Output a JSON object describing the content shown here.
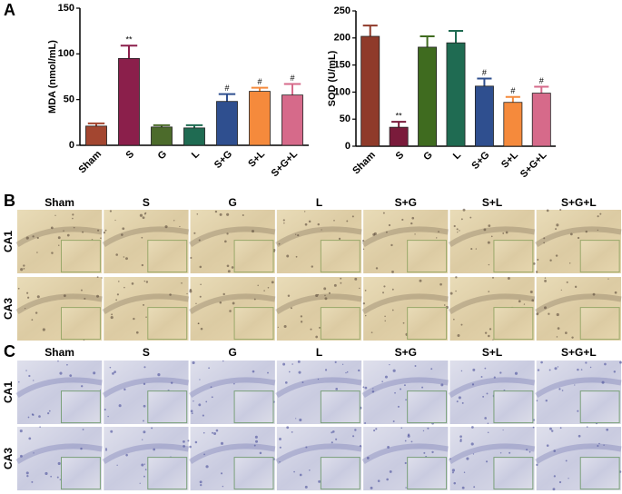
{
  "chart_data": [
    {
      "type": "bar",
      "y_label": "MDA (nmol/mL)",
      "categories": [
        "Sham",
        "S",
        "G",
        "L",
        "S+G",
        "S+L",
        "S+G+L"
      ],
      "values": [
        21,
        95,
        20,
        19,
        48,
        59,
        55
      ],
      "errors": [
        3,
        14,
        2,
        3,
        8,
        4,
        12
      ],
      "significance": [
        null,
        "**",
        null,
        null,
        "#",
        "#",
        "#"
      ],
      "colors": [
        "#a34630",
        "#8b1f4b",
        "#4c6b2b",
        "#1f6b52",
        "#2f4f8f",
        "#f58a3c",
        "#d66a8a"
      ],
      "ylim": [
        0,
        150
      ],
      "yticks": [
        0,
        50,
        100,
        150
      ]
    },
    {
      "type": "bar",
      "y_label": "SOD (U/mL)",
      "categories": [
        "Sham",
        "S",
        "G",
        "L",
        "S+G",
        "S+L",
        "S+G+L"
      ],
      "values": [
        203,
        35,
        183,
        191,
        111,
        81,
        98
      ],
      "errors": [
        20,
        10,
        20,
        22,
        14,
        10,
        12
      ],
      "significance": [
        null,
        "**",
        null,
        null,
        "#",
        "#",
        "#"
      ],
      "colors": [
        "#8f3a2a",
        "#7a1b3b",
        "#3f6b1f",
        "#1f6b52",
        "#2f4f8f",
        "#f58a3c",
        "#d66a8a"
      ],
      "ylim": [
        0,
        250
      ],
      "yticks": [
        0,
        50,
        100,
        150,
        200,
        250
      ]
    }
  ],
  "panel_labels": [
    "A",
    "B",
    "C"
  ],
  "panel_b": {
    "columns": [
      "Sham",
      "S",
      "G",
      "L",
      "S+G",
      "S+L",
      "S+G+L"
    ],
    "rows": [
      "CA1",
      "CA3"
    ]
  },
  "panel_c": {
    "columns": [
      "Sham",
      "S",
      "G",
      "L",
      "S+G",
      "S+L",
      "S+G+L"
    ],
    "rows": [
      "CA1",
      "CA3"
    ]
  }
}
